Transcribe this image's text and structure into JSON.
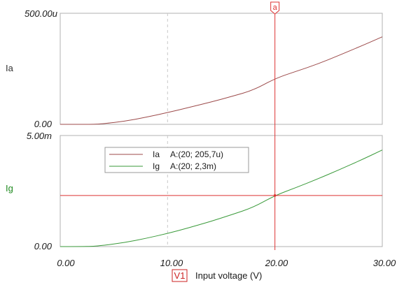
{
  "chart_data": [
    {
      "type": "line",
      "ylabel": "Ia",
      "ylim": [
        0,
        0.0005
      ],
      "y_tick_labels": [
        "500.00u",
        "0.00"
      ],
      "series": [
        {
          "name": "Ia",
          "color": "#9c4a4a",
          "x": [
            0,
            2,
            3,
            4,
            6,
            8,
            10,
            12,
            14,
            16,
            18,
            20,
            22,
            24,
            26,
            28,
            30
          ],
          "y": [
            0,
            0,
            0,
            2.5e-06,
            1.4e-05,
            3.2e-05,
            5.3e-05,
            7.6e-05,
            0.0001,
            0.000126,
            0.000154,
            0.000206,
            0.000239,
            0.000272,
            0.000311,
            0.000352,
            0.000394
          ]
        }
      ]
    },
    {
      "type": "line",
      "ylabel": "Ig",
      "ylim": [
        0,
        0.005
      ],
      "y_tick_labels": [
        "5.00m",
        "0.00"
      ],
      "series": [
        {
          "name": "Ig",
          "color": "#3a9a3a",
          "x": [
            0,
            2,
            3,
            4,
            6,
            8,
            10,
            12,
            14,
            16,
            18,
            20,
            22,
            24,
            26,
            28,
            30
          ],
          "y": [
            0,
            0,
            1e-05,
            5e-05,
            0.00018,
            0.00037,
            0.00059,
            0.00085,
            0.00113,
            0.00144,
            0.00177,
            0.0023,
            0.00266,
            0.00305,
            0.00346,
            0.00389,
            0.00435
          ]
        }
      ]
    }
  ],
  "x_axis": {
    "xlim": [
      0,
      30
    ],
    "tick_labels": [
      "0.00",
      "10.00",
      "20.00",
      "30.00"
    ],
    "tick_values": [
      0,
      10,
      20,
      30
    ],
    "label": "Input voltage (V)",
    "source_tag": "V1"
  },
  "cursor": {
    "label": "a",
    "x": 20,
    "ig_level": 0.0023,
    "color": "#dd3333"
  },
  "legend": {
    "entries": [
      {
        "name": "Ia",
        "readout": "A:(20; 205,7u)",
        "color": "#9c4a4a"
      },
      {
        "name": "Ig",
        "readout": "A:(20; 2,3m)",
        "color": "#3a9a3a"
      }
    ]
  },
  "colors": {
    "frame": "#b0b0b0",
    "grid": "#c8c8c8",
    "ia": "#9c4a4a",
    "ig": "#3a9a3a",
    "ylabel_top": "#333333",
    "ylabel_bottom": "#1f8a1f"
  }
}
